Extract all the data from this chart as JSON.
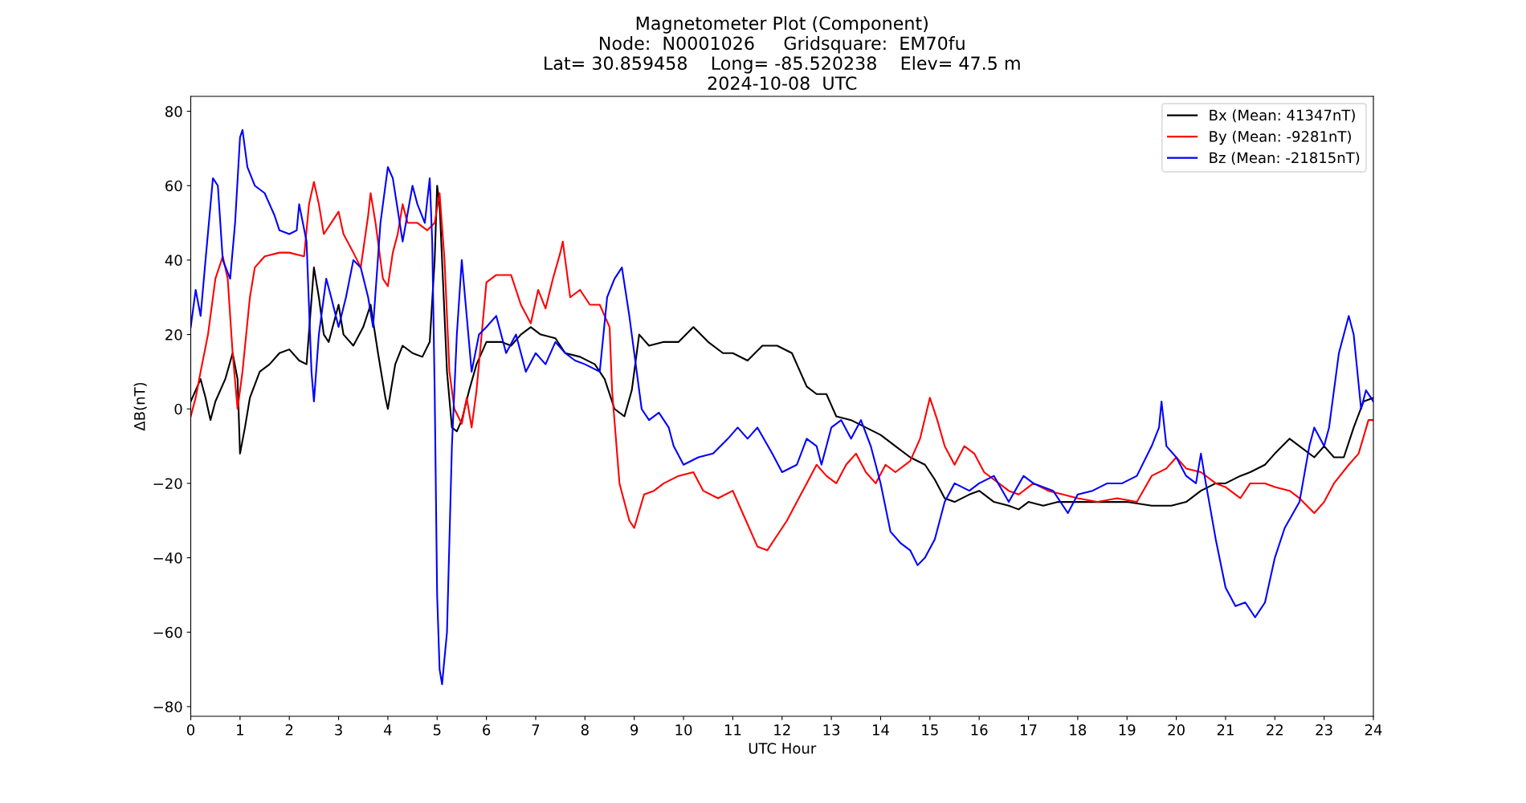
{
  "chart_data": {
    "type": "line",
    "title": "Magnetometer Plot (Component)\nNode:  N0001026     Gridsquare:  EM70fu\nLat= 30.859458    Long= -85.520238    Elev= 47.5 m\n2024-10-08  UTC",
    "xlabel": "UTC Hour",
    "ylabel": "ΔB(nT)",
    "xlim": [
      0,
      24
    ],
    "xticks": [
      0,
      1,
      2,
      3,
      4,
      5,
      6,
      7,
      8,
      9,
      10,
      11,
      12,
      13,
      14,
      15,
      16,
      17,
      18,
      19,
      20,
      21,
      22,
      23,
      24
    ],
    "ylim": [
      -82.6,
      84
    ],
    "yticks": [
      -80,
      -60,
      -40,
      -20,
      0,
      20,
      40,
      60,
      80
    ],
    "grid": false,
    "legend": "top right",
    "marker": "none",
    "line_style": "solid",
    "series": [
      {
        "name": "Bx (Mean: 41347nT)",
        "color": "#000000",
        "x": [
          0,
          0.1,
          0.2,
          0.3,
          0.4,
          0.5,
          0.7,
          0.85,
          0.95,
          1.0,
          1.1,
          1.2,
          1.4,
          1.6,
          1.8,
          2.0,
          2.2,
          2.35,
          2.5,
          2.6,
          2.7,
          2.8,
          3.0,
          3.1,
          3.3,
          3.5,
          3.65,
          3.8,
          3.95,
          4.0,
          4.15,
          4.3,
          4.5,
          4.7,
          4.85,
          4.95,
          5.0,
          5.05,
          5.2,
          5.3,
          5.4,
          5.5,
          5.65,
          5.8,
          6.0,
          6.3,
          6.5,
          6.7,
          6.9,
          7.1,
          7.4,
          7.6,
          7.9,
          8.2,
          8.4,
          8.6,
          8.8,
          8.95,
          9.1,
          9.3,
          9.6,
          9.9,
          10.2,
          10.5,
          10.8,
          11.0,
          11.3,
          11.6,
          11.9,
          12.2,
          12.5,
          12.7,
          12.9,
          13.1,
          13.4,
          13.7,
          14.0,
          14.3,
          14.6,
          14.9,
          15.1,
          15.3,
          15.5,
          15.8,
          16.0,
          16.3,
          16.6,
          16.8,
          17.0,
          17.3,
          17.6,
          18.0,
          18.5,
          19.0,
          19.5,
          19.9,
          20.2,
          20.5,
          20.8,
          21.0,
          21.3,
          21.5,
          21.8,
          22.0,
          22.3,
          22.5,
          22.8,
          23.0,
          23.2,
          23.4,
          23.6,
          23.8,
          24
        ],
        "values": [
          2,
          5,
          8,
          3,
          -3,
          2,
          8,
          15,
          8,
          -12,
          -5,
          3,
          10,
          12,
          15,
          16,
          13,
          12,
          38,
          30,
          20,
          18,
          28,
          20,
          17,
          22,
          28,
          15,
          3,
          0,
          12,
          17,
          15,
          14,
          18,
          40,
          60,
          55,
          10,
          -5,
          -6,
          -3,
          5,
          12,
          18,
          18,
          17,
          20,
          22,
          20,
          19,
          15,
          14,
          12,
          8,
          0,
          -2,
          5,
          20,
          17,
          18,
          18,
          22,
          18,
          15,
          15,
          13,
          17,
          17,
          15,
          6,
          4,
          4,
          -2,
          -3,
          -5,
          -7,
          -10,
          -13,
          -15,
          -19,
          -24,
          -25,
          -23,
          -22,
          -25,
          -26,
          -27,
          -25,
          -26,
          -25,
          -25,
          -25,
          -25,
          -26,
          -26,
          -25,
          -22,
          -20,
          -20,
          -18,
          -17,
          -15,
          -12,
          -8,
          -10,
          -13,
          -10,
          -13,
          -13,
          -5,
          2,
          3
        ]
      },
      {
        "name": "By (Mean: -9281nT)",
        "color": "#ff0000",
        "x": [
          0,
          0.1,
          0.2,
          0.35,
          0.5,
          0.65,
          0.75,
          0.85,
          0.95,
          1.05,
          1.2,
          1.3,
          1.5,
          1.8,
          2.0,
          2.3,
          2.4,
          2.5,
          2.6,
          2.7,
          2.85,
          3.0,
          3.1,
          3.3,
          3.45,
          3.6,
          3.65,
          3.75,
          3.9,
          4.0,
          4.1,
          4.2,
          4.3,
          4.4,
          4.6,
          4.8,
          4.95,
          5.05,
          5.15,
          5.25,
          5.35,
          5.5,
          5.6,
          5.7,
          5.8,
          6.0,
          6.2,
          6.5,
          6.7,
          6.9,
          7.05,
          7.2,
          7.35,
          7.5,
          7.55,
          7.7,
          7.9,
          8.1,
          8.3,
          8.5,
          8.55,
          8.7,
          8.9,
          9.0,
          9.2,
          9.4,
          9.6,
          9.9,
          10.2,
          10.4,
          10.7,
          11.0,
          11.2,
          11.5,
          11.7,
          11.9,
          12.1,
          12.3,
          12.5,
          12.7,
          12.9,
          13.1,
          13.3,
          13.5,
          13.7,
          13.9,
          14.1,
          14.3,
          14.6,
          14.8,
          15.0,
          15.15,
          15.3,
          15.5,
          15.7,
          15.9,
          16.1,
          16.4,
          16.6,
          16.8,
          17.1,
          17.4,
          17.7,
          18.0,
          18.4,
          18.8,
          19.2,
          19.5,
          19.8,
          20.0,
          20.2,
          20.5,
          20.8,
          21.0,
          21.3,
          21.5,
          21.8,
          22.0,
          22.3,
          22.5,
          22.8,
          23.0,
          23.2,
          23.5,
          23.7,
          23.9,
          24
        ],
        "values": [
          -2,
          3,
          10,
          20,
          35,
          41,
          35,
          15,
          0,
          10,
          30,
          38,
          41,
          42,
          42,
          41,
          55,
          61,
          55,
          47,
          50,
          53,
          47,
          42,
          38,
          52,
          58,
          50,
          35,
          33,
          42,
          47,
          55,
          50,
          50,
          48,
          50,
          58,
          40,
          10,
          0,
          -4,
          3,
          -5,
          5,
          34,
          36,
          36,
          28,
          23,
          32,
          27,
          35,
          42,
          45,
          30,
          32,
          28,
          28,
          22,
          5,
          -20,
          -30,
          -32,
          -23,
          -22,
          -20,
          -18,
          -17,
          -22,
          -24,
          -22,
          -28,
          -37,
          -38,
          -34,
          -30,
          -25,
          -20,
          -15,
          -18,
          -20,
          -15,
          -12,
          -17,
          -20,
          -15,
          -17,
          -14,
          -8,
          3,
          -3,
          -10,
          -15,
          -10,
          -12,
          -17,
          -20,
          -22,
          -23,
          -20,
          -22,
          -23,
          -24,
          -25,
          -24,
          -25,
          -18,
          -16,
          -13,
          -16,
          -17,
          -20,
          -21,
          -24,
          -20,
          -20,
          -21,
          -22,
          -24,
          -28,
          -25,
          -20,
          -15,
          -12,
          -3,
          -3
        ]
      },
      {
        "name": "Bz (Mean: -21815nT)",
        "color": "#0000ff",
        "x": [
          0,
          0.1,
          0.2,
          0.3,
          0.45,
          0.55,
          0.65,
          0.8,
          0.9,
          1.0,
          1.05,
          1.15,
          1.3,
          1.5,
          1.7,
          1.8,
          2.0,
          2.15,
          2.2,
          2.35,
          2.45,
          2.5,
          2.6,
          2.75,
          2.85,
          3.0,
          3.15,
          3.3,
          3.45,
          3.6,
          3.7,
          3.85,
          4.0,
          4.1,
          4.3,
          4.5,
          4.6,
          4.75,
          4.85,
          4.9,
          4.95,
          5.0,
          5.05,
          5.1,
          5.2,
          5.3,
          5.4,
          5.5,
          5.6,
          5.7,
          5.85,
          6.0,
          6.2,
          6.4,
          6.6,
          6.8,
          7.0,
          7.2,
          7.4,
          7.6,
          7.8,
          8.0,
          8.3,
          8.45,
          8.6,
          8.75,
          8.9,
          9.0,
          9.15,
          9.3,
          9.5,
          9.7,
          9.8,
          10.0,
          10.3,
          10.6,
          10.9,
          11.1,
          11.3,
          11.5,
          11.8,
          12.0,
          12.3,
          12.5,
          12.7,
          12.8,
          13.0,
          13.2,
          13.4,
          13.6,
          13.8,
          14.0,
          14.2,
          14.4,
          14.6,
          14.75,
          14.9,
          15.1,
          15.3,
          15.5,
          15.8,
          16.0,
          16.3,
          16.6,
          16.9,
          17.1,
          17.5,
          17.8,
          18.0,
          18.3,
          18.6,
          18.9,
          19.2,
          19.5,
          19.65,
          19.7,
          19.8,
          20.0,
          20.2,
          20.4,
          20.5,
          20.6,
          20.8,
          21.0,
          21.2,
          21.4,
          21.6,
          21.8,
          22.0,
          22.2,
          22.5,
          22.7,
          22.8,
          23.0,
          23.1,
          23.3,
          23.5,
          23.6,
          23.75,
          23.85,
          24
        ],
        "values": [
          22,
          32,
          25,
          40,
          62,
          60,
          40,
          35,
          50,
          73,
          75,
          65,
          60,
          58,
          52,
          48,
          47,
          48,
          55,
          45,
          10,
          2,
          20,
          35,
          30,
          22,
          30,
          40,
          38,
          30,
          22,
          50,
          65,
          62,
          45,
          60,
          55,
          50,
          62,
          45,
          5,
          -50,
          -70,
          -74,
          -60,
          -10,
          20,
          40,
          25,
          10,
          20,
          22,
          25,
          15,
          20,
          10,
          15,
          12,
          18,
          15,
          13,
          12,
          10,
          30,
          35,
          38,
          25,
          15,
          0,
          -3,
          -1,
          -5,
          -10,
          -15,
          -13,
          -12,
          -8,
          -5,
          -8,
          -5,
          -12,
          -17,
          -15,
          -8,
          -10,
          -15,
          -5,
          -3,
          -8,
          -3,
          -10,
          -20,
          -33,
          -36,
          -38,
          -42,
          -40,
          -35,
          -25,
          -20,
          -22,
          -20,
          -18,
          -25,
          -18,
          -20,
          -22,
          -28,
          -23,
          -22,
          -20,
          -20,
          -18,
          -10,
          -5,
          2,
          -10,
          -13,
          -18,
          -20,
          -12,
          -20,
          -35,
          -48,
          -53,
          -52,
          -56,
          -52,
          -40,
          -32,
          -25,
          -10,
          -5,
          -10,
          -5,
          15,
          25,
          20,
          0,
          5,
          2
        ]
      }
    ]
  }
}
